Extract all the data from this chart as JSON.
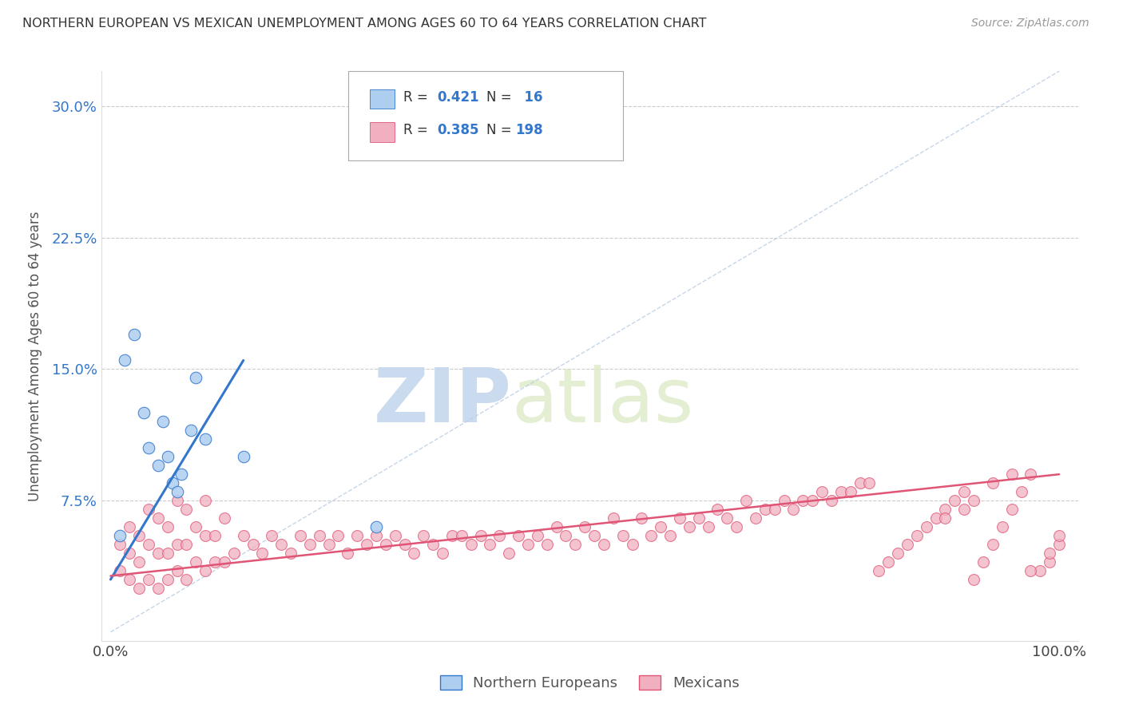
{
  "title": "NORTHERN EUROPEAN VS MEXICAN UNEMPLOYMENT AMONG AGES 60 TO 64 YEARS CORRELATION CHART",
  "source": "Source: ZipAtlas.com",
  "xlabel": "",
  "ylabel": "Unemployment Among Ages 60 to 64 years",
  "xlim": [
    -1,
    102
  ],
  "ylim": [
    -0.5,
    32
  ],
  "yticks": [
    7.5,
    15.0,
    22.5,
    30.0
  ],
  "xticks": [
    0,
    100
  ],
  "xtick_labels": [
    "0.0%",
    "100.0%"
  ],
  "ytick_labels": [
    "7.5%",
    "15.0%",
    "22.5%",
    "30.0%"
  ],
  "r_blue": 0.421,
  "n_blue": 16,
  "r_pink": 0.385,
  "n_pink": 198,
  "blue_color": "#aecef0",
  "pink_color": "#f0b0c0",
  "blue_line_color": "#3377cc",
  "pink_line_color": "#e05575",
  "legend_label_blue": "Northern Europeans",
  "legend_label_pink": "Mexicans",
  "watermark_zip": "ZIP",
  "watermark_atlas": "atlas",
  "background_color": "#ffffff",
  "blue_scatter_x": [
    1.0,
    1.5,
    2.5,
    3.5,
    4.0,
    5.0,
    5.5,
    6.0,
    6.5,
    7.0,
    7.5,
    8.5,
    9.0,
    10.0,
    14.0,
    28.0
  ],
  "blue_scatter_y": [
    5.5,
    15.5,
    17.0,
    12.5,
    10.5,
    9.5,
    12.0,
    10.0,
    8.5,
    8.0,
    9.0,
    11.5,
    14.5,
    11.0,
    10.0,
    6.0
  ],
  "blue_trendline_x0": 0.0,
  "blue_trendline_y0": 3.0,
  "blue_trendline_x1": 14.0,
  "blue_trendline_y1": 15.5,
  "pink_trendline_x0": 0.0,
  "pink_trendline_y0": 3.2,
  "pink_trendline_x1": 100.0,
  "pink_trendline_y1": 9.0,
  "diag_x0": 0,
  "diag_y0": 0,
  "diag_x1": 100,
  "diag_y1": 32,
  "pink_scatter_x": [
    1,
    1,
    2,
    2,
    2,
    3,
    3,
    3,
    4,
    4,
    4,
    5,
    5,
    5,
    6,
    6,
    6,
    7,
    7,
    7,
    8,
    8,
    8,
    9,
    9,
    10,
    10,
    10,
    11,
    11,
    12,
    12,
    13,
    14,
    15,
    16,
    17,
    18,
    19,
    20,
    21,
    22,
    23,
    24,
    25,
    26,
    27,
    28,
    29,
    30,
    31,
    32,
    33,
    34,
    35,
    36,
    37,
    38,
    39,
    40,
    41,
    42,
    43,
    44,
    45,
    46,
    47,
    48,
    49,
    50,
    51,
    52,
    53,
    54,
    55,
    56,
    57,
    58,
    59,
    60,
    61,
    62,
    63,
    64,
    65,
    66,
    67,
    68,
    69,
    70,
    71,
    72,
    73,
    74,
    75,
    76,
    77,
    78,
    79,
    80,
    81,
    82,
    83,
    84,
    85,
    86,
    87,
    88,
    89,
    90,
    91,
    92,
    93,
    94,
    95,
    96,
    97,
    98,
    99,
    100,
    88,
    90,
    91,
    93,
    95,
    97,
    99,
    100
  ],
  "pink_scatter_y": [
    3.5,
    5.0,
    3.0,
    4.5,
    6.0,
    2.5,
    4.0,
    5.5,
    3.0,
    5.0,
    7.0,
    2.5,
    4.5,
    6.5,
    3.0,
    4.5,
    6.0,
    3.5,
    5.0,
    7.5,
    3.0,
    5.0,
    7.0,
    4.0,
    6.0,
    3.5,
    5.5,
    7.5,
    4.0,
    5.5,
    4.0,
    6.5,
    4.5,
    5.5,
    5.0,
    4.5,
    5.5,
    5.0,
    4.5,
    5.5,
    5.0,
    5.5,
    5.0,
    5.5,
    4.5,
    5.5,
    5.0,
    5.5,
    5.0,
    5.5,
    5.0,
    4.5,
    5.5,
    5.0,
    4.5,
    5.5,
    5.5,
    5.0,
    5.5,
    5.0,
    5.5,
    4.5,
    5.5,
    5.0,
    5.5,
    5.0,
    6.0,
    5.5,
    5.0,
    6.0,
    5.5,
    5.0,
    6.5,
    5.5,
    5.0,
    6.5,
    5.5,
    6.0,
    5.5,
    6.5,
    6.0,
    6.5,
    6.0,
    7.0,
    6.5,
    6.0,
    7.5,
    6.5,
    7.0,
    7.0,
    7.5,
    7.0,
    7.5,
    7.5,
    8.0,
    7.5,
    8.0,
    8.0,
    8.5,
    8.5,
    3.5,
    4.0,
    4.5,
    5.0,
    5.5,
    6.0,
    6.5,
    7.0,
    7.5,
    8.0,
    3.0,
    4.0,
    5.0,
    6.0,
    7.0,
    8.0,
    9.0,
    3.5,
    4.0,
    5.0,
    6.5,
    7.0,
    7.5,
    8.5,
    9.0,
    3.5,
    4.5,
    5.5
  ]
}
